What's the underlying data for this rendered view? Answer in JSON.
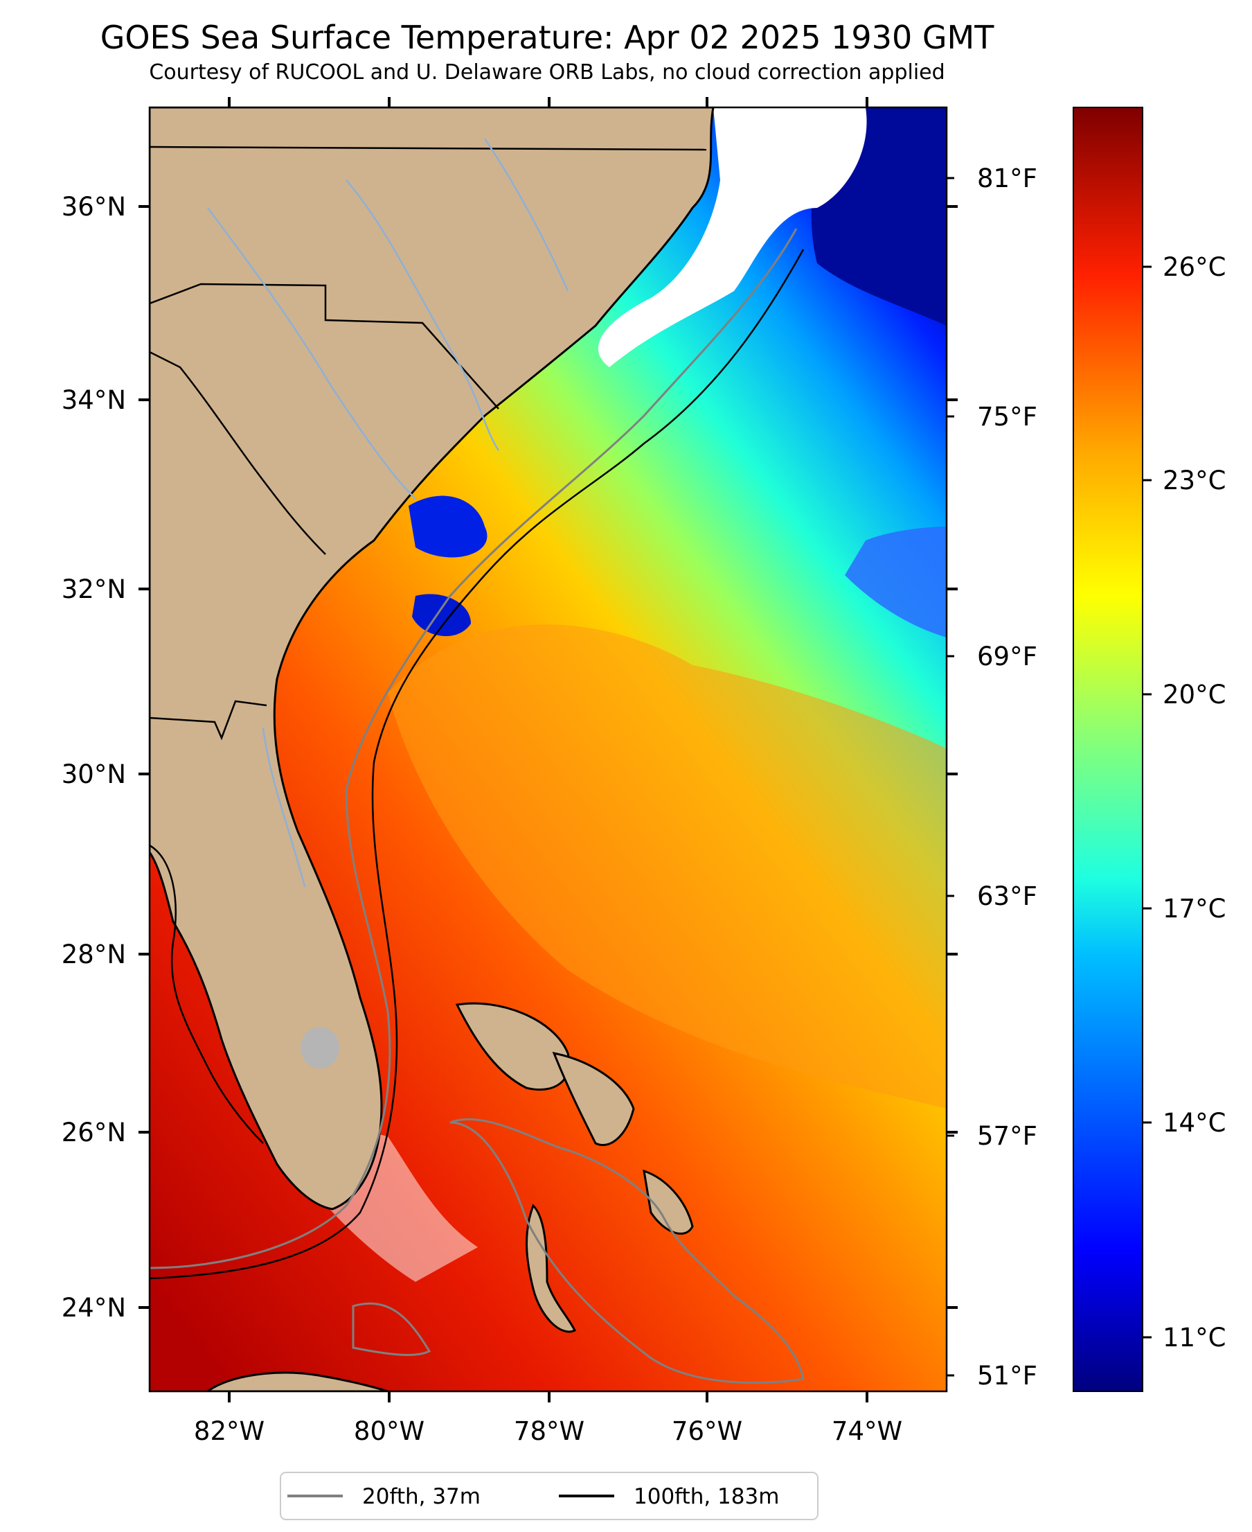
{
  "header": {
    "title": "GOES Sea Surface Temperature: Apr 02 2025 1930 GMT",
    "subtitle": "Courtesy of RUCOOL and U. Delaware ORB Labs, no cloud correction applied"
  },
  "map": {
    "lon_range": [
      -83.0,
      -73.0
    ],
    "lat_range": [
      23.1,
      37.1
    ],
    "lon_ticks": [
      "82°W",
      "80°W",
      "78°W",
      "76°W",
      "74°W"
    ],
    "lat_ticks": [
      "36°N",
      "34°N",
      "32°N",
      "30°N",
      "28°N",
      "26°N",
      "24°N"
    ],
    "fahrenheit_ticks": [
      "81°F",
      "75°F",
      "69°F",
      "63°F",
      "57°F",
      "51°F"
    ],
    "colors": {
      "land": "#cfb38e",
      "coast_outline": "#000000",
      "isobath_20fth": "#808080",
      "isobath_100fth": "#000000",
      "rivers": "#8fb0d6",
      "cloud_mask": "#ffffff"
    }
  },
  "colorbar": {
    "colormap": "jet",
    "range_c": [
      10.0,
      28.0
    ],
    "ticks": [
      "26°C",
      "23°C",
      "20°C",
      "17°C",
      "14°C",
      "11°C"
    ]
  },
  "legend": {
    "items": [
      {
        "label": "20fth, 37m",
        "color": "#808080"
      },
      {
        "label": "100fth, 183m",
        "color": "#000000"
      }
    ]
  }
}
